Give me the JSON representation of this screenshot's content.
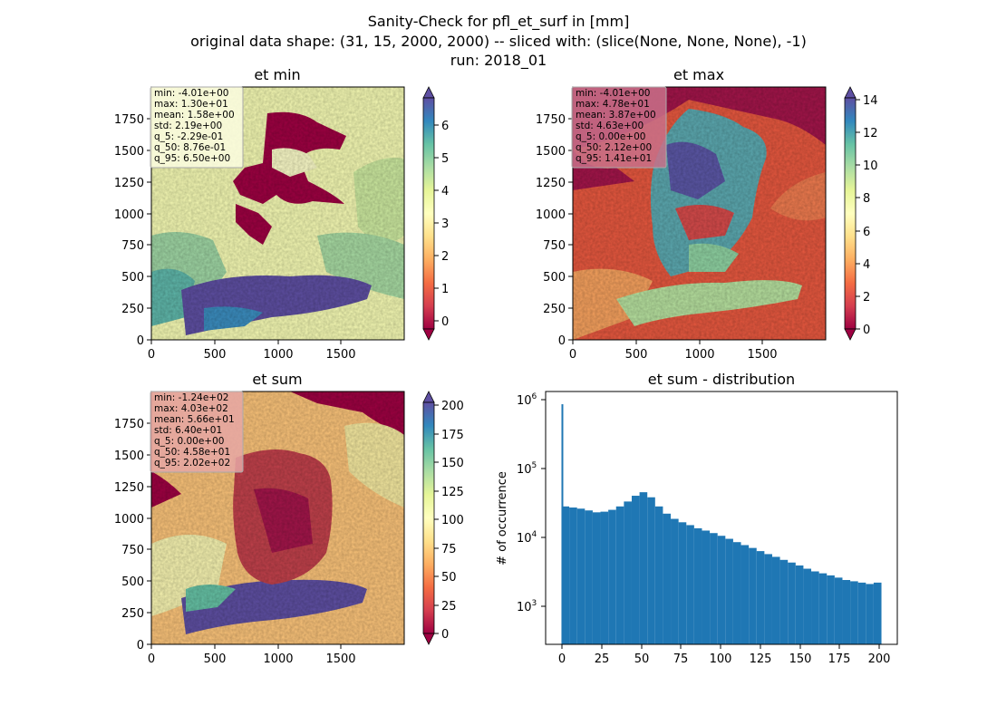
{
  "figure": {
    "title_lines": [
      "Sanity-Check for pfl_et_surf in [mm]",
      "original data shape: (31, 15, 2000, 2000) -- sliced with: (slice(None, None, None), -1)",
      "run: 2018_01"
    ]
  },
  "chart_data": [
    {
      "type": "heatmap",
      "title": "et min",
      "colormap": "Spectral",
      "xticks": [
        "0",
        "500",
        "1000",
        "1500"
      ],
      "yticks": [
        "0",
        "250",
        "500",
        "750",
        "1000",
        "1250",
        "1500",
        "1750"
      ],
      "colorbar": {
        "ticks": [
          "0",
          "1",
          "2",
          "3",
          "4",
          "5",
          "6"
        ],
        "range": [
          -0.5,
          6.6
        ]
      },
      "stats": [
        "min: -4.01e+00",
        "max: 1.30e+01",
        "mean: 1.58e+00",
        "std: 2.19e+00",
        "q_5: -2.29e-01",
        "q_50: 8.76e-01",
        "q_95: 6.50e+00"
      ],
      "stats_box_color": "#fbfde0"
    },
    {
      "type": "heatmap",
      "title": "et max",
      "colormap": "Spectral",
      "xticks": [
        "0",
        "500",
        "1000",
        "1500"
      ],
      "yticks": [
        "0",
        "250",
        "500",
        "750",
        "1000",
        "1250",
        "1500",
        "1750"
      ],
      "colorbar": {
        "ticks": [
          "0",
          "2",
          "4",
          "6",
          "8",
          "10",
          "12",
          "14"
        ],
        "range": [
          0,
          14.1
        ]
      },
      "stats": [
        "min: -4.01e+00",
        "max: 4.78e+01",
        "mean: 3.87e+00",
        "std: 4.63e+00",
        "q_5: 0.00e+00",
        "q_50: 2.12e+00",
        "q_95: 1.41e+01"
      ],
      "stats_box_color": "#c9718a"
    },
    {
      "type": "heatmap",
      "title": "et sum",
      "colormap": "Spectral",
      "xticks": [
        "0",
        "500",
        "1000",
        "1500"
      ],
      "yticks": [
        "0",
        "250",
        "500",
        "750",
        "1000",
        "1250",
        "1500",
        "1750"
      ],
      "colorbar": {
        "ticks": [
          "0",
          "25",
          "50",
          "75",
          "100",
          "125",
          "150",
          "175",
          "200"
        ],
        "range": [
          0,
          202
        ]
      },
      "stats": [
        "min: -1.24e+02",
        "max: 4.03e+02",
        "mean: 5.66e+01",
        "std: 6.40e+01",
        "q_5: 0.00e+00",
        "q_50: 4.58e+01",
        "q_95: 2.02e+02"
      ],
      "stats_box_color": "#e6a7a5"
    },
    {
      "type": "bar",
      "title": "et sum - distribution",
      "ylabel": "# of occurrence",
      "yscale": "log",
      "ylim": [
        280,
        1300000
      ],
      "xlim": [
        -10,
        212
      ],
      "xticks": [
        "0",
        "25",
        "50",
        "75",
        "100",
        "125",
        "150",
        "175",
        "200"
      ],
      "color": "#1f77b4",
      "bin_edges_range": [
        0,
        202
      ],
      "spike": {
        "x": 0,
        "value": 850000
      },
      "counts": [
        28000,
        27000,
        26000,
        24500,
        23000,
        23500,
        25000,
        28000,
        33000,
        40000,
        45000,
        38000,
        28000,
        22000,
        18500,
        16500,
        15000,
        13500,
        12500,
        11500,
        10500,
        9500,
        8500,
        7700,
        7000,
        6300,
        5700,
        5200,
        4700,
        4300,
        3900,
        3500,
        3200,
        3000,
        2800,
        2600,
        2400,
        2300,
        2200,
        2100,
        2200
      ]
    }
  ]
}
